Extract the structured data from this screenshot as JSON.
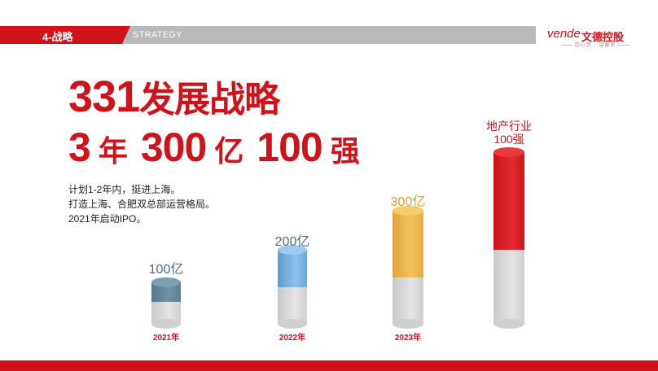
{
  "header": {
    "section_label": "4-战略",
    "section_en": "STRATEGY"
  },
  "logo": {
    "wordmark": "vende",
    "company": "文德控股",
    "tagline": "匠心筑 · 温馨家"
  },
  "headline": {
    "line1_number": "331",
    "line1_text": "发展战略",
    "line2": [
      {
        "value": "3",
        "unit": "年"
      },
      {
        "value": "300",
        "unit": "亿"
      },
      {
        "value": "100",
        "unit": "强"
      }
    ]
  },
  "description": [
    "计划1-2年内，挺进上海。",
    "打造上海、合肥双总部运营格局。",
    "2021年启动IPO。"
  ],
  "chart_data": {
    "type": "bar",
    "categories": [
      "2021年",
      "2022年",
      "2023年",
      ""
    ],
    "values": [
      100,
      200,
      300,
      100
    ],
    "value_labels": [
      "100亿",
      "200亿",
      "300亿",
      "地产行业100强"
    ],
    "colors": [
      "#5f8699",
      "#6fa7d8",
      "#ebb14a",
      "#d8131b"
    ]
  },
  "top_target": {
    "line1": "地产行业",
    "line2": "100强"
  }
}
